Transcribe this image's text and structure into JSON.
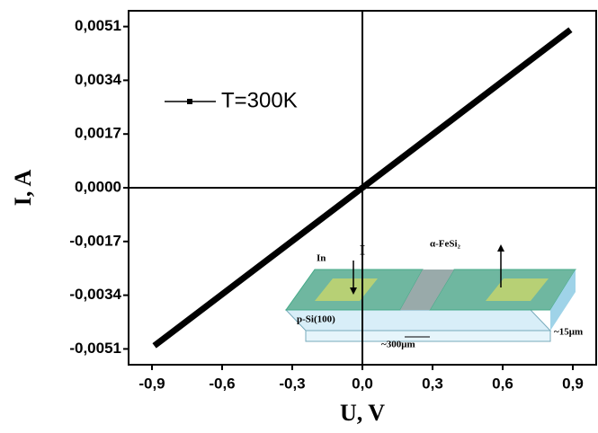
{
  "chart_data": {
    "type": "line",
    "x_label": "U, V",
    "y_label": "I, A",
    "x": [
      -0.89,
      0,
      0.89
    ],
    "series": [
      {
        "name": "T=300K",
        "color": "#000000",
        "values": [
          -0.005,
          0,
          0.005
        ]
      }
    ],
    "xlim": [
      -1.0,
      1.0
    ],
    "xticks": [
      {
        "value": -0.9,
        "label": "-0,9"
      },
      {
        "value": -0.6,
        "label": "-0,6"
      },
      {
        "value": -0.3,
        "label": "-0,3"
      },
      {
        "value": 0,
        "label": "0,0"
      },
      {
        "value": 0.3,
        "label": "0,3"
      },
      {
        "value": 0.6,
        "label": "0,6"
      },
      {
        "value": 0.9,
        "label": "0,9"
      }
    ],
    "ylim": [
      -0.0056,
      0.0056
    ],
    "yticks": [
      {
        "value": -0.0051,
        "label": "-0,0051"
      },
      {
        "value": -0.0034,
        "label": "-0,0034"
      },
      {
        "value": -0.0017,
        "label": "-0,0017"
      },
      {
        "value": 0,
        "label": "0,0000"
      },
      {
        "value": 0.0017,
        "label": "0,0017"
      },
      {
        "value": 0.0034,
        "label": "0,0034"
      },
      {
        "value": 0.0051,
        "label": "0,0051"
      }
    ],
    "legend": "upper left",
    "inset_labels": {
      "current": "I",
      "contact": "In",
      "film": "α-FeSi₂",
      "substrate": "p-Si(100)",
      "thickness": "~15μm",
      "gap": "~300μm"
    }
  }
}
